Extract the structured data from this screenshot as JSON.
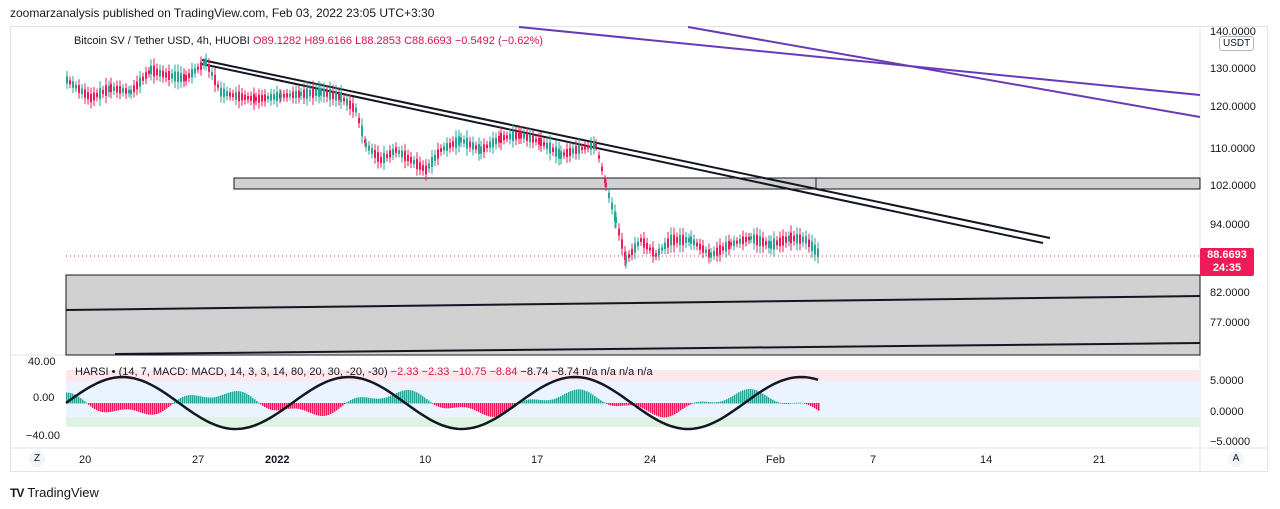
{
  "publisher_line": "zoomarzanalysis published on TradingView.com, Feb 03, 2022 23:05 UTC+3:30",
  "symbol": {
    "name": "Bitcoin SV / Tether USD, 4h, HUOBI",
    "open": "O89.1282",
    "high": "H89.6166",
    "low": "L88.2853",
    "close": "C88.6693",
    "change": "−0.5492 (−0.62%)"
  },
  "currency_button": "USDT",
  "price_axis": [
    "140.0000",
    "130.0000",
    "120.0000",
    "110.0000",
    "102.0000",
    "94.0000",
    "82.0000",
    "77.0000"
  ],
  "last_price": {
    "value": "88.6693",
    "countdown": "24:35"
  },
  "indicator": {
    "legend_name": "HARSI",
    "legend_params": "(14, 7, MACD: MACD, 14, 3, 3, 14, 80, 20, 30, -20, -30)",
    "legend_values": [
      "−2.33",
      "−2.33",
      "−10.75",
      "−8.84",
      "−8.74",
      "−8.74",
      "n/a",
      "n/a",
      "n/a",
      "n/a"
    ],
    "left_axis": [
      "40.00",
      "0.00",
      "−40.00"
    ],
    "right_axis": [
      "5.0000",
      "0.0000",
      "−5.0000"
    ]
  },
  "time_axis": [
    "20",
    "27",
    "2022",
    "10",
    "17",
    "24",
    "Feb",
    "7",
    "14",
    "21"
  ],
  "corner_buttons": {
    "left": "Z",
    "right": "A"
  },
  "brand": "TradingView",
  "colors": {
    "bull": "#26a69a",
    "bear": "#ef1a58",
    "trend_purple": "#673ab7",
    "band_gray": "#d1d1d1"
  }
}
